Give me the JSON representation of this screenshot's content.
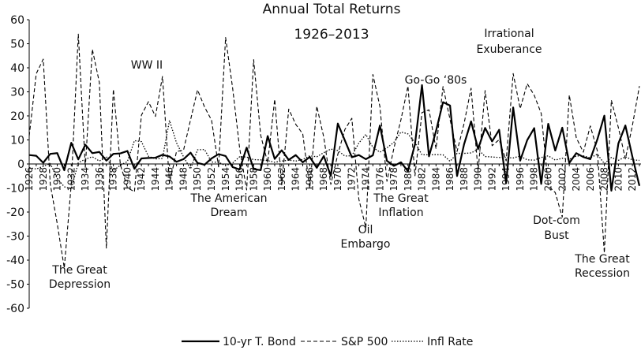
{
  "chart_data": {
    "type": "line",
    "title": "Annual Total Returns",
    "subtitle": "1926–2013",
    "xlabel": "",
    "ylabel": "",
    "ylim": [
      -60,
      60
    ],
    "y_ticks": [
      60,
      50,
      40,
      30,
      20,
      10,
      0,
      -10,
      -20,
      -30,
      -40,
      -50,
      -60
    ],
    "x_tick_labels": [
      "1926",
      "1928",
      "1930",
      "1932",
      "1934",
      "1936",
      "1938",
      "1940",
      "1942",
      "1944",
      "1946",
      "1948",
      "1950",
      "1952",
      "1954",
      "1956",
      "1958",
      "1960",
      "1962",
      "1964",
      "1966",
      "1968",
      "1970",
      "1972",
      "1974",
      "1976",
      "1978",
      "1980",
      "1982",
      "1984",
      "1986",
      "1988",
      "1990",
      "1992",
      "1994",
      "1996",
      "1998",
      "2000",
      "2002",
      "2004",
      "2006",
      "2008",
      "2010",
      "2012"
    ],
    "x": [
      1926,
      1927,
      1928,
      1929,
      1930,
      1931,
      1932,
      1933,
      1934,
      1935,
      1936,
      1937,
      1938,
      1939,
      1940,
      1941,
      1942,
      1943,
      1944,
      1945,
      1946,
      1947,
      1948,
      1949,
      1950,
      1951,
      1952,
      1953,
      1954,
      1955,
      1956,
      1957,
      1958,
      1959,
      1960,
      1961,
      1962,
      1963,
      1964,
      1965,
      1966,
      1967,
      1968,
      1969,
      1970,
      1971,
      1972,
      1973,
      1974,
      1975,
      1976,
      1977,
      1978,
      1979,
      1980,
      1981,
      1982,
      1983,
      1984,
      1985,
      1986,
      1987,
      1988,
      1989,
      1990,
      1991,
      1992,
      1993,
      1994,
      1995,
      1996,
      1997,
      1998,
      1999,
      2000,
      2001,
      2002,
      2003,
      2004,
      2005,
      2006,
      2007,
      2008,
      2009,
      2010,
      2011,
      2012,
      2013
    ],
    "grid": false,
    "legend_position": "bottom",
    "series": [
      {
        "name": "10-yr T. Bond",
        "style": "solid",
        "color": "#000000",
        "values": [
          3.7,
          3.4,
          0.5,
          4.2,
          4.5,
          -2.6,
          8.8,
          1.9,
          8.0,
          4.5,
          5.0,
          1.4,
          4.2,
          4.4,
          5.4,
          -2.0,
          2.3,
          2.5,
          2.6,
          3.8,
          3.1,
          0.9,
          2.0,
          4.7,
          0.4,
          -0.3,
          2.3,
          4.1,
          3.3,
          -1.3,
          -2.3,
          6.8,
          -2.1,
          -2.6,
          11.6,
          2.1,
          5.7,
          1.7,
          3.7,
          0.7,
          2.9,
          -1.6,
          3.3,
          -5.0,
          16.8,
          9.8,
          2.8,
          3.7,
          2.0,
          3.6,
          16.0,
          1.3,
          -0.8,
          0.7,
          -3.0,
          8.2,
          32.8,
          3.2,
          13.7,
          25.7,
          24.3,
          -5.0,
          8.2,
          17.7,
          6.2,
          15.0,
          9.4,
          14.2,
          -8.0,
          23.5,
          1.4,
          9.9,
          14.9,
          -8.3,
          16.7,
          5.6,
          15.1,
          0.4,
          4.5,
          2.9,
          2.0,
          10.2,
          20.1,
          -11.1,
          8.5,
          16.0,
          3.0,
          -9.1
        ]
      },
      {
        "name": "S&P 500",
        "style": "dashed",
        "color": "#000000",
        "values": [
          11.6,
          37.5,
          43.6,
          -8.4,
          -24.9,
          -43.3,
          -8.2,
          54.0,
          -1.4,
          47.7,
          33.9,
          -35.0,
          31.1,
          -0.4,
          -9.8,
          -11.6,
          20.3,
          25.9,
          19.8,
          36.4,
          -8.1,
          5.2,
          5.7,
          18.3,
          30.8,
          23.7,
          18.2,
          -1.2,
          52.6,
          31.6,
          6.6,
          -10.8,
          43.4,
          12.0,
          0.5,
          26.9,
          -8.7,
          22.8,
          16.5,
          12.5,
          -10.1,
          24.0,
          11.1,
          -8.5,
          4.0,
          14.3,
          19.0,
          -14.7,
          -26.5,
          37.2,
          23.9,
          -7.2,
          6.6,
          18.4,
          32.4,
          -4.9,
          21.4,
          22.5,
          6.3,
          32.2,
          18.5,
          5.2,
          16.8,
          31.5,
          -3.1,
          30.5,
          7.6,
          10.1,
          1.3,
          37.6,
          23.0,
          33.4,
          28.6,
          21.0,
          -9.1,
          -11.9,
          -22.1,
          28.7,
          10.9,
          4.9,
          15.8,
          5.5,
          -37.0,
          26.5,
          15.1,
          2.1,
          16.0,
          32.4
        ]
      },
      {
        "name": "Infl Rate",
        "style": "dotted",
        "color": "#000000",
        "values": [
          -1.5,
          -2.1,
          -1.0,
          0.2,
          -6.0,
          -9.5,
          -10.3,
          0.5,
          2.0,
          3.0,
          1.2,
          3.1,
          -2.8,
          -0.5,
          1.0,
          9.7,
          9.3,
          3.2,
          2.1,
          2.3,
          18.1,
          8.8,
          3.0,
          -2.1,
          5.9,
          6.0,
          0.8,
          0.7,
          -0.7,
          0.4,
          3.0,
          2.9,
          1.8,
          1.7,
          1.4,
          0.7,
          1.2,
          1.6,
          1.2,
          1.9,
          3.4,
          3.0,
          4.7,
          6.2,
          5.6,
          3.3,
          3.4,
          8.7,
          12.3,
          6.9,
          4.9,
          6.7,
          9.0,
          13.3,
          12.5,
          8.9,
          3.8,
          3.8,
          3.9,
          3.8,
          1.1,
          4.4,
          4.4,
          4.6,
          6.1,
          3.1,
          2.9,
          2.7,
          2.7,
          2.5,
          3.3,
          1.7,
          1.6,
          2.7,
          3.4,
          1.6,
          2.4,
          1.9,
          3.3,
          3.4,
          2.5,
          4.1,
          0.1,
          2.7,
          1.5,
          3.0,
          1.7,
          1.5
        ]
      }
    ],
    "annotations": [
      {
        "id": "great-depression",
        "lines": [
          "The Great",
          "Depression"
        ]
      },
      {
        "id": "ww2",
        "lines": [
          "WW II"
        ]
      },
      {
        "id": "american-dream",
        "lines": [
          "The American",
          "Dream"
        ]
      },
      {
        "id": "oil-embargo",
        "lines": [
          "Oil",
          "Embargo"
        ]
      },
      {
        "id": "great-inflation",
        "lines": [
          "The Great",
          "Inflation"
        ]
      },
      {
        "id": "go-go-80s",
        "lines": [
          "Go-Go ‘80s"
        ]
      },
      {
        "id": "irrational-exuberance",
        "lines": [
          "Irrational",
          "Exuberance"
        ]
      },
      {
        "id": "dotcom-bust",
        "lines": [
          "Dot-com",
          "Bust"
        ]
      },
      {
        "id": "great-recession",
        "lines": [
          "The Great",
          "Recession"
        ]
      }
    ]
  }
}
